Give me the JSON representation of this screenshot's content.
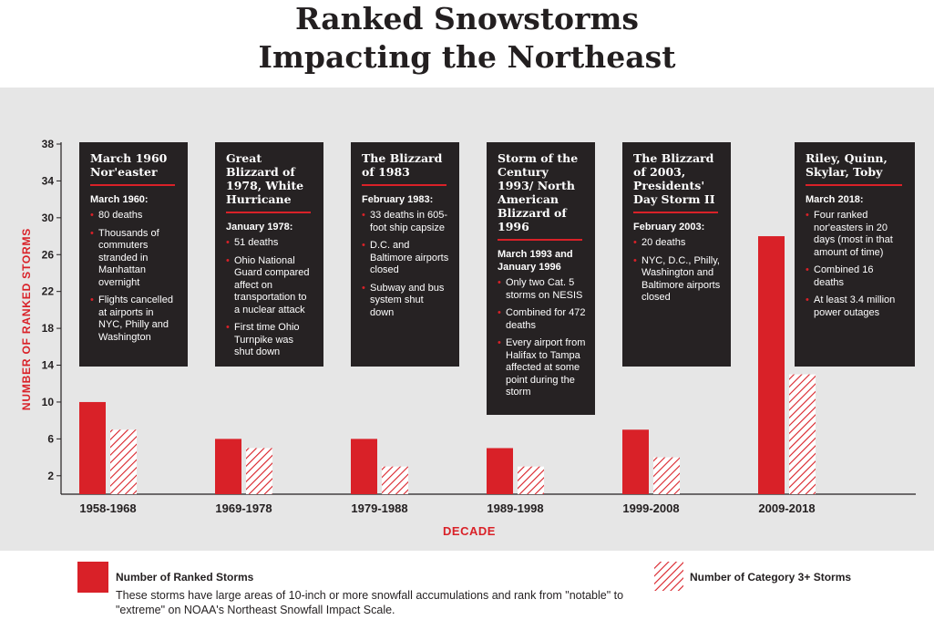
{
  "title": {
    "line1": "Ranked Snowstorms",
    "line2": "Impacting the Northeast"
  },
  "colors": {
    "bar": "#d92128",
    "hatch": "#d92128",
    "box": "#262223",
    "panel": "#e6e6e6",
    "axis": "#231f20"
  },
  "chart_data": {
    "type": "bar",
    "categories": [
      "1958-1968",
      "1969-1978",
      "1979-1988",
      "1989-1998",
      "1999-2008",
      "2009-2018"
    ],
    "series": [
      {
        "name": "Number of Ranked Storms",
        "values": [
          10,
          6,
          6,
          5,
          7,
          28
        ],
        "style": "solid"
      },
      {
        "name": "Number of Category 3+ Storms",
        "values": [
          7,
          5,
          3,
          3,
          4,
          13
        ],
        "style": "hatched"
      }
    ],
    "xlabel": "DECADE",
    "ylabel": "NUMBER OF RANKED STORMS",
    "yticks": [
      2,
      6,
      10,
      14,
      18,
      22,
      26,
      30,
      34,
      38
    ],
    "ylim": [
      0,
      38
    ],
    "grid": false
  },
  "storms": [
    {
      "title": "March 1960 Nor'easter",
      "date": "March 1960:",
      "bullets": [
        "80 deaths",
        "Thousands of commuters stranded in Manhattan overnight",
        "Flights cancelled at airports in NYC, Philly and Washington"
      ]
    },
    {
      "title": "Great Blizzard of 1978, White Hurricane",
      "date": "January 1978:",
      "bullets": [
        "51 deaths",
        "Ohio National Guard compared affect on transportation to a nuclear attack",
        "First time Ohio Turnpike was shut down"
      ]
    },
    {
      "title": "The Blizzard of 1983",
      "date": "February 1983:",
      "bullets": [
        "33 deaths in 605-foot ship capsize",
        "D.C. and Baltimore airports closed",
        "Subway and bus system shut down"
      ]
    },
    {
      "title": "Storm of the Century 1993/ North American Blizzard of 1996",
      "date": "March 1993 and January 1996",
      "bullets": [
        "Only two Cat. 5 storms on NESIS",
        "Combined for 472 deaths",
        "Every airport from Halifax to Tampa affected at some point during the storm"
      ]
    },
    {
      "title": "The Blizzard of 2003, Presidents' Day Storm II",
      "date": "February 2003:",
      "bullets": [
        "20 deaths",
        "NYC, D.C., Philly, Washington and Baltimore airports closed"
      ]
    },
    {
      "title": "Riley, Quinn, Skylar, Toby",
      "date": "March 2018:",
      "bullets": [
        "Four ranked nor'easters in 20 days (most in that amount of time)",
        "Combined 16 deaths",
        "At least 3.4 million power outages"
      ]
    }
  ],
  "legend": {
    "ranked_label": "Number of Ranked Storms",
    "ranked_desc": "These storms have large areas of 10-inch or more snowfall accumulations and rank from \"notable\" to \"extreme\" on NOAA's Northeast Snowfall Impact Scale.",
    "cat3_label": "Number of Category 3+ Storms"
  }
}
